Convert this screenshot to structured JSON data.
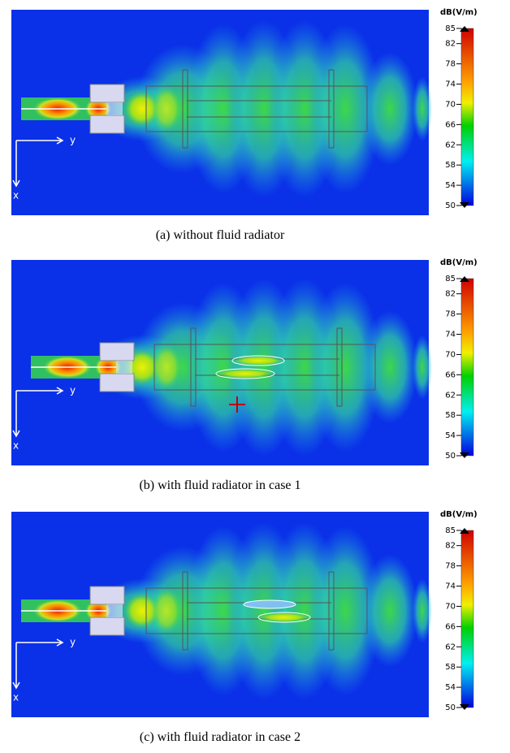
{
  "panels": [
    {
      "caption": "(a) without fluid radiator",
      "axis_labels": {
        "x": "x",
        "y": "y"
      },
      "colorbar": {
        "unit": "dB(V/m)",
        "range": [
          50,
          85
        ],
        "ticks": [
          85,
          82,
          78,
          74,
          70,
          66,
          62,
          58,
          54,
          50
        ]
      }
    },
    {
      "caption": "(b) with fluid radiator in case 1",
      "axis_labels": {
        "x": "x",
        "y": "y"
      },
      "colorbar": {
        "unit": "dB(V/m)",
        "range": [
          50,
          85
        ],
        "ticks": [
          85,
          82,
          78,
          74,
          70,
          66,
          62,
          58,
          54,
          50
        ]
      }
    },
    {
      "caption": "(c) with fluid radiator in case 2",
      "axis_labels": {
        "x": "x",
        "y": "y"
      },
      "colorbar": {
        "unit": "dB(V/m)",
        "range": [
          50,
          85
        ],
        "ticks": [
          85,
          82,
          78,
          74,
          70,
          66,
          62,
          58,
          54,
          50
        ]
      }
    }
  ]
}
